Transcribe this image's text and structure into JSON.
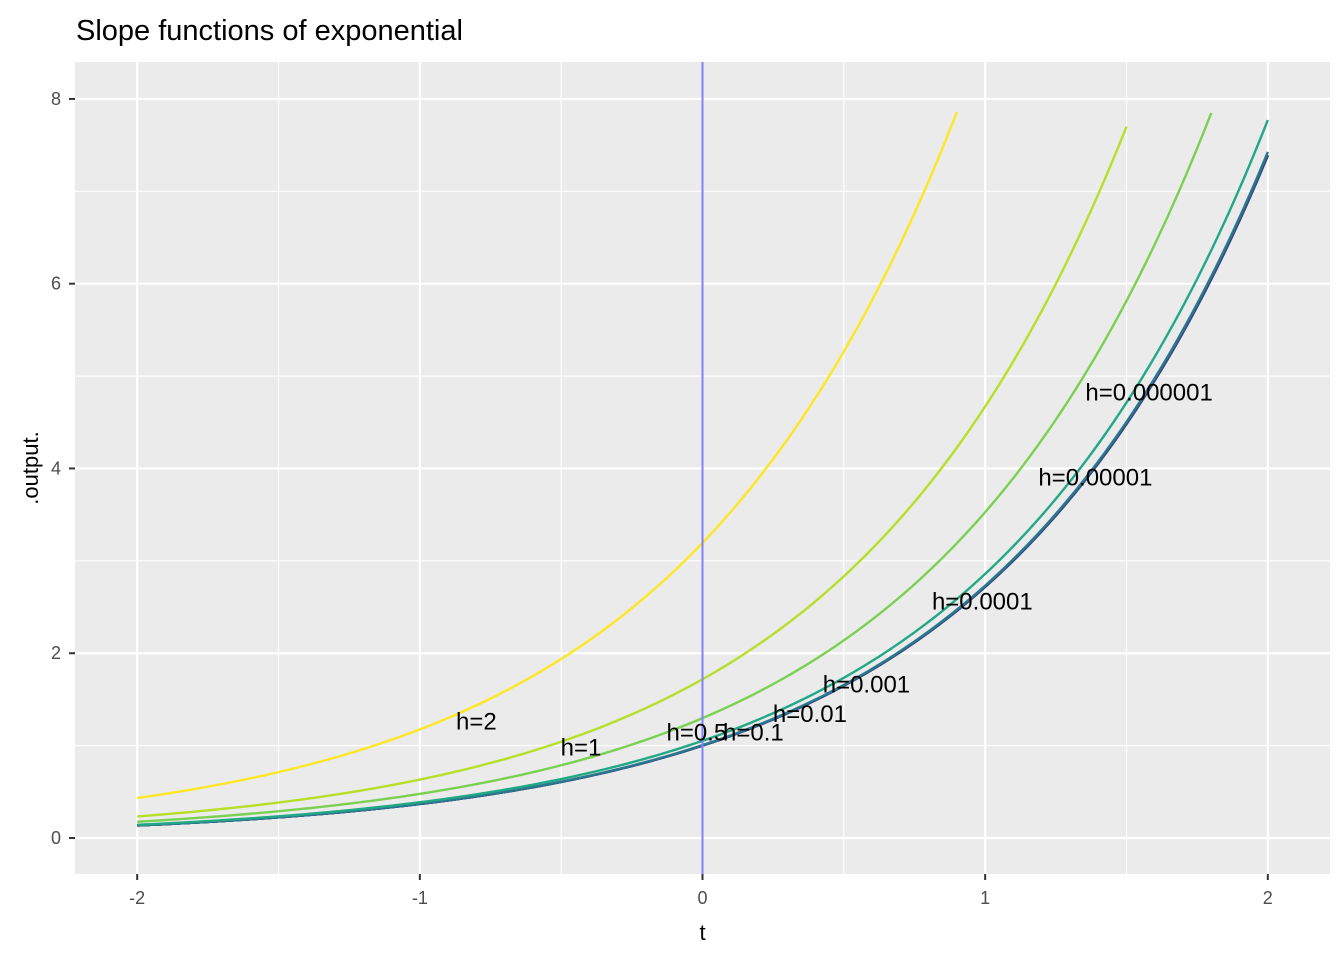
{
  "chart_data": {
    "type": "line",
    "title": "Slope functions of exponential",
    "xlabel": "t",
    "ylabel": ".output.",
    "xlim": [
      -2.22,
      2.22
    ],
    "ylim": [
      -0.39,
      8.4
    ],
    "x_ticks": [
      -2,
      -1,
      0,
      1,
      2
    ],
    "x_tick_labels": [
      "-2",
      "-1",
      "0",
      "1",
      "2"
    ],
    "y_ticks": [
      0,
      2,
      4,
      6,
      8
    ],
    "y_tick_labels": [
      "0",
      "2",
      "4",
      "6",
      "8"
    ],
    "grid": true,
    "vline": {
      "x": 0,
      "color": "#7f7fff"
    },
    "series": [
      {
        "name": "h=2",
        "h": 2,
        "color": "#fde725",
        "x_end": 0.9,
        "label": {
          "x": -0.8,
          "y": 1.26
        }
      },
      {
        "name": "h=1",
        "h": 1,
        "color": "#b8de29",
        "x_end": 1.5,
        "label": {
          "x": -0.43,
          "y": 0.98
        }
      },
      {
        "name": "h=0.5",
        "h": 0.5,
        "color": "#7ad151",
        "x_end": 1.8,
        "label": {
          "x": -0.02,
          "y": 1.14
        }
      },
      {
        "name": "h=0.1",
        "h": 0.1,
        "color": "#22a884",
        "x_end": 2.0,
        "label": {
          "x": 0.18,
          "y": 1.14
        }
      },
      {
        "name": "h=0.01",
        "h": 0.01,
        "color": "#2a788e",
        "x_end": 2.0,
        "label": {
          "x": 0.38,
          "y": 1.34
        }
      },
      {
        "name": "h=0.001",
        "h": 0.001,
        "color": "#414487",
        "x_end": 2.0,
        "label": {
          "x": 0.58,
          "y": 1.66
        }
      },
      {
        "name": "h=0.0001",
        "h": 0.0001,
        "color": "#00507a",
        "x_end": 2.0,
        "label": {
          "x": 0.99,
          "y": 2.56
        }
      },
      {
        "name": "h=0.00001",
        "h": 1e-05,
        "color": "#004c75",
        "x_end": 2.0,
        "label": {
          "x": 1.39,
          "y": 3.9
        }
      },
      {
        "name": "h=0.000001",
        "h": 1e-06,
        "color": "#004a72",
        "x_end": 2.0,
        "label": {
          "x": 1.58,
          "y": 4.82
        }
      }
    ]
  }
}
